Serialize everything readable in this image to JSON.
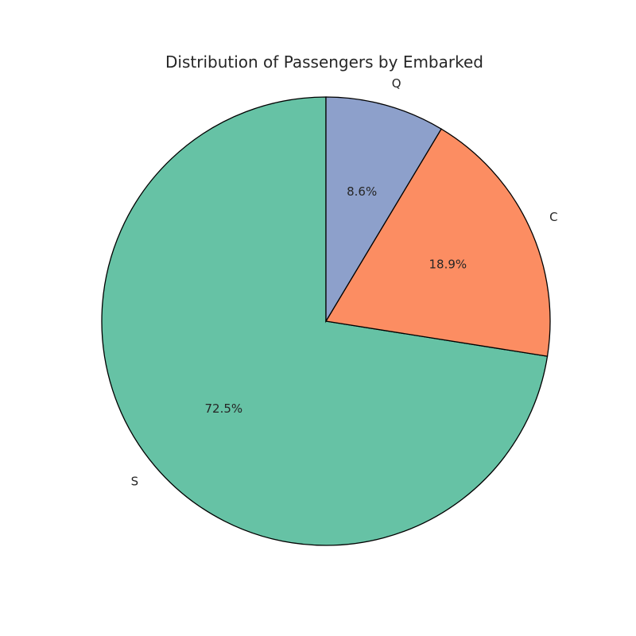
{
  "chart_data": {
    "type": "pie",
    "title": "Distribution of Passengers by Embarked",
    "slices": [
      {
        "label": "S",
        "value": 72.5,
        "pct_label": "72.5%",
        "color": "#66c2a5"
      },
      {
        "label": "C",
        "value": 18.9,
        "pct_label": "18.9%",
        "color": "#fc8d62"
      },
      {
        "label": "Q",
        "value": 8.6,
        "pct_label": "8.6%",
        "color": "#8da0cb"
      }
    ],
    "start_angle_deg": 90,
    "direction": "counterclockwise",
    "edge_color": "#000000"
  }
}
